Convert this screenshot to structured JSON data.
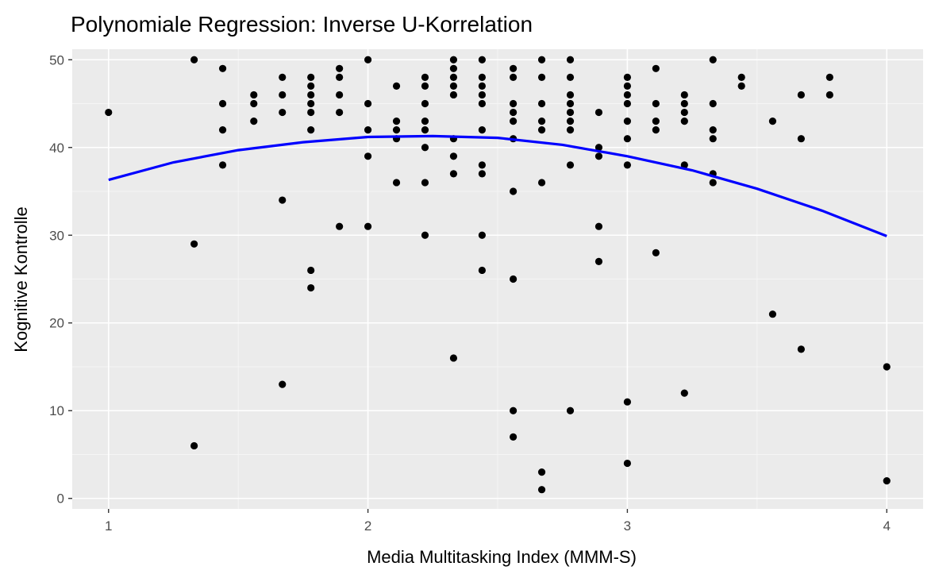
{
  "chart_data": {
    "type": "scatter",
    "title": "Polynomiale Regression: Inverse U-Korrelation",
    "xlabel": "Media Multitasking Index (MMM-S)",
    "ylabel": "Kognitive Kontrolle",
    "xlim": [
      0.86,
      4.14
    ],
    "ylim": [
      -1.2,
      51.2
    ],
    "x_ticks": [
      1,
      2,
      3,
      4
    ],
    "y_ticks": [
      0,
      10,
      20,
      30,
      40,
      50
    ],
    "x_tick_labels": [
      "1",
      "2",
      "3",
      "4"
    ],
    "y_tick_labels": [
      "0",
      "10",
      "20",
      "30",
      "40",
      "50"
    ],
    "grid": true,
    "colors": {
      "panel_background": "#ebebeb",
      "grid_major": "#ffffff",
      "grid_minor": "#f5f5f5",
      "points": "#000000",
      "fit_line": "#0000ff"
    },
    "points": [
      [
        1.0,
        44
      ],
      [
        1.33,
        50
      ],
      [
        1.33,
        29
      ],
      [
        1.33,
        6
      ],
      [
        1.44,
        49
      ],
      [
        1.44,
        45
      ],
      [
        1.44,
        42
      ],
      [
        1.44,
        38
      ],
      [
        1.56,
        46
      ],
      [
        1.56,
        45
      ],
      [
        1.56,
        43
      ],
      [
        1.67,
        48
      ],
      [
        1.67,
        46
      ],
      [
        1.67,
        44
      ],
      [
        1.67,
        34
      ],
      [
        1.67,
        13
      ],
      [
        1.78,
        48
      ],
      [
        1.78,
        47
      ],
      [
        1.78,
        46
      ],
      [
        1.78,
        45
      ],
      [
        1.78,
        44
      ],
      [
        1.78,
        42
      ],
      [
        1.78,
        26
      ],
      [
        1.78,
        24
      ],
      [
        1.89,
        49
      ],
      [
        1.89,
        48
      ],
      [
        1.89,
        46
      ],
      [
        1.89,
        44
      ],
      [
        1.89,
        31
      ],
      [
        2.0,
        50
      ],
      [
        2.0,
        45
      ],
      [
        2.0,
        42
      ],
      [
        2.0,
        39
      ],
      [
        2.0,
        31
      ],
      [
        2.11,
        47
      ],
      [
        2.11,
        43
      ],
      [
        2.11,
        42
      ],
      [
        2.11,
        41
      ],
      [
        2.11,
        36
      ],
      [
        2.22,
        48
      ],
      [
        2.22,
        47
      ],
      [
        2.22,
        45
      ],
      [
        2.22,
        43
      ],
      [
        2.22,
        42
      ],
      [
        2.22,
        40
      ],
      [
        2.22,
        36
      ],
      [
        2.22,
        30
      ],
      [
        2.33,
        50
      ],
      [
        2.33,
        49
      ],
      [
        2.33,
        48
      ],
      [
        2.33,
        47
      ],
      [
        2.33,
        46
      ],
      [
        2.33,
        41
      ],
      [
        2.33,
        39
      ],
      [
        2.33,
        37
      ],
      [
        2.33,
        16
      ],
      [
        2.44,
        50
      ],
      [
        2.44,
        48
      ],
      [
        2.44,
        47
      ],
      [
        2.44,
        46
      ],
      [
        2.44,
        45
      ],
      [
        2.44,
        42
      ],
      [
        2.44,
        38
      ],
      [
        2.44,
        37
      ],
      [
        2.44,
        30
      ],
      [
        2.44,
        26
      ],
      [
        2.56,
        49
      ],
      [
        2.56,
        48
      ],
      [
        2.56,
        45
      ],
      [
        2.56,
        44
      ],
      [
        2.56,
        43
      ],
      [
        2.56,
        41
      ],
      [
        2.56,
        35
      ],
      [
        2.56,
        25
      ],
      [
        2.56,
        10
      ],
      [
        2.56,
        7
      ],
      [
        2.67,
        50
      ],
      [
        2.67,
        48
      ],
      [
        2.67,
        45
      ],
      [
        2.67,
        43
      ],
      [
        2.67,
        42
      ],
      [
        2.67,
        36
      ],
      [
        2.67,
        3
      ],
      [
        2.67,
        1
      ],
      [
        2.78,
        50
      ],
      [
        2.78,
        48
      ],
      [
        2.78,
        46
      ],
      [
        2.78,
        45
      ],
      [
        2.78,
        44
      ],
      [
        2.78,
        43
      ],
      [
        2.78,
        42
      ],
      [
        2.78,
        38
      ],
      [
        2.78,
        10
      ],
      [
        2.89,
        44
      ],
      [
        2.89,
        40
      ],
      [
        2.89,
        39
      ],
      [
        2.89,
        31
      ],
      [
        2.89,
        27
      ],
      [
        3.0,
        48
      ],
      [
        3.0,
        47
      ],
      [
        3.0,
        46
      ],
      [
        3.0,
        45
      ],
      [
        3.0,
        43
      ],
      [
        3.0,
        41
      ],
      [
        3.0,
        38
      ],
      [
        3.0,
        11
      ],
      [
        3.0,
        4
      ],
      [
        3.11,
        49
      ],
      [
        3.11,
        45
      ],
      [
        3.11,
        43
      ],
      [
        3.11,
        42
      ],
      [
        3.11,
        28
      ],
      [
        3.22,
        46
      ],
      [
        3.22,
        45
      ],
      [
        3.22,
        44
      ],
      [
        3.22,
        43
      ],
      [
        3.22,
        38
      ],
      [
        3.22,
        12
      ],
      [
        3.33,
        50
      ],
      [
        3.33,
        45
      ],
      [
        3.33,
        42
      ],
      [
        3.33,
        41
      ],
      [
        3.33,
        37
      ],
      [
        3.33,
        36
      ],
      [
        3.44,
        48
      ],
      [
        3.44,
        47
      ],
      [
        3.56,
        43
      ],
      [
        3.56,
        21
      ],
      [
        3.67,
        46
      ],
      [
        3.67,
        41
      ],
      [
        3.67,
        17
      ],
      [
        3.78,
        48
      ],
      [
        3.78,
        46
      ],
      [
        4.0,
        15
      ],
      [
        4.0,
        2
      ]
    ],
    "fit_line": {
      "x": [
        1.0,
        1.25,
        1.5,
        1.75,
        2.0,
        2.25,
        2.5,
        2.75,
        3.0,
        3.25,
        3.5,
        3.75,
        4.0
      ],
      "y": [
        36.3,
        38.3,
        39.7,
        40.6,
        41.2,
        41.3,
        41.1,
        40.3,
        39.0,
        37.4,
        35.3,
        32.8,
        29.9
      ]
    }
  }
}
